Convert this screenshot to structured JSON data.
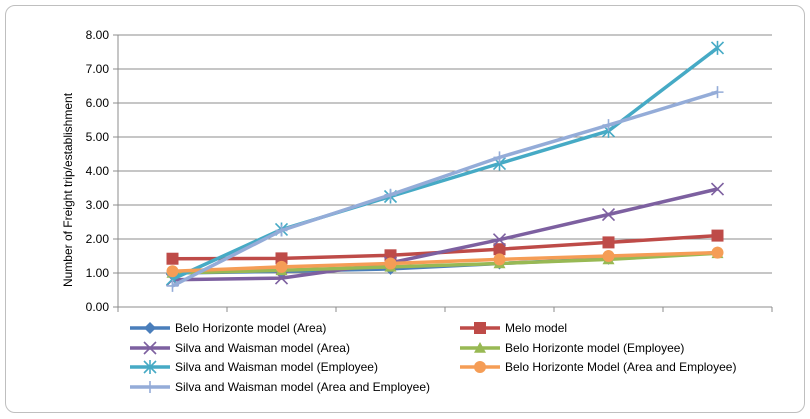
{
  "chart_data": {
    "type": "line",
    "title": "",
    "xlabel": "",
    "ylabel": "Number of Freight trip/establishment",
    "ylim": [
      0,
      8
    ],
    "yticks": [
      "0.00",
      "1.00",
      "2.00",
      "3.00",
      "4.00",
      "5.00",
      "6.00",
      "7.00",
      "8.00"
    ],
    "x": [
      1,
      2,
      3,
      4,
      5,
      6
    ],
    "grid": true,
    "legend_position": "bottom",
    "series": [
      {
        "name": "Belo Horizonte model (Area)",
        "color": "#4a7ebb",
        "marker": "diamond",
        "values": [
          1.0,
          1.05,
          1.12,
          1.28,
          1.42,
          1.6
        ]
      },
      {
        "name": "Melo model",
        "color": "#be4b48",
        "marker": "square",
        "values": [
          1.42,
          1.43,
          1.52,
          1.7,
          1.9,
          2.1
        ]
      },
      {
        "name": "Silva and Waisman model  (Area)",
        "color": "#7d60a0",
        "marker": "x",
        "values": [
          0.8,
          0.85,
          1.3,
          1.98,
          2.72,
          3.47
        ]
      },
      {
        "name": "Belo Horizonte model  (Employee)",
        "color": "#98b954",
        "marker": "triangle",
        "values": [
          1.0,
          1.08,
          1.18,
          1.28,
          1.4,
          1.58
        ]
      },
      {
        "name": "Silva and Waisman model  (Employee)",
        "color": "#46aac5",
        "marker": "asterisk",
        "values": [
          0.82,
          2.28,
          3.25,
          4.22,
          5.18,
          7.62
        ]
      },
      {
        "name": "Belo Horizonte Model (Area and Employee)",
        "color": "#f59d56",
        "marker": "circle",
        "values": [
          1.05,
          1.18,
          1.28,
          1.4,
          1.5,
          1.6
        ]
      },
      {
        "name": "Silva and Waisman model (Area and Employee)",
        "color": "#94acd8",
        "marker": "plus",
        "values": [
          0.62,
          2.25,
          3.3,
          4.4,
          5.35,
          6.32
        ]
      }
    ]
  }
}
